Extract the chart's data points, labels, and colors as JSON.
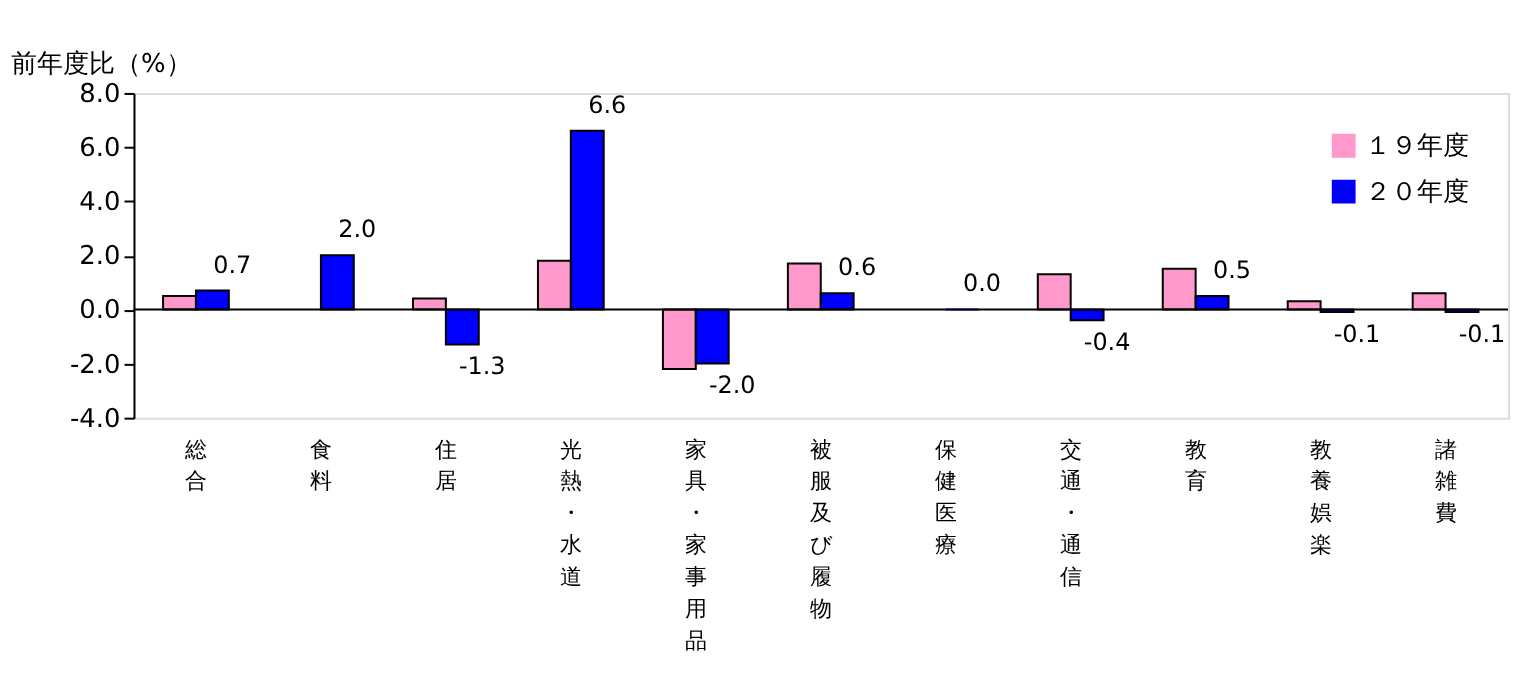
{
  "chart_data": {
    "type": "bar",
    "ylabel": "前年度比（%）",
    "categories": [
      "総合",
      "食料",
      "住居",
      "光熱・水道",
      "家具・家事用品",
      "被服及び履物",
      "保健医療",
      "交通・通信",
      "教育",
      "教養娯楽",
      "諸雑費"
    ],
    "series": [
      {
        "name": "１９年度",
        "color": "#ff99cc",
        "values": [
          0.5,
          null,
          0.4,
          1.8,
          -2.2,
          1.7,
          null,
          1.3,
          1.5,
          0.3,
          0.6
        ]
      },
      {
        "name": "２０年度",
        "color": "#0000ff",
        "values": [
          0.7,
          2.0,
          -1.3,
          6.6,
          -2.0,
          0.6,
          0.0,
          -0.4,
          0.5,
          -0.1,
          -0.1
        ],
        "value_labels": [
          "0.7",
          "2.0",
          "-1.3",
          "6.6",
          "-2.0",
          "0.6",
          "0.0",
          "-0.4",
          "0.5",
          "-0.1",
          "-0.1"
        ]
      }
    ],
    "ylim": [
      -4.0,
      8.0
    ],
    "yticks": [
      {
        "value": -4,
        "label": "-4.0"
      },
      {
        "value": -2,
        "label": "-2.0"
      },
      {
        "value": 0,
        "label": "0.0"
      },
      {
        "value": 2,
        "label": "2.0"
      },
      {
        "value": 4,
        "label": "4.0"
      },
      {
        "value": 6,
        "label": "6.0"
      },
      {
        "value": 8,
        "label": "8.0"
      }
    ],
    "ref_lines": [
      {
        "axis": "y",
        "value": 0,
        "color": "#000000"
      }
    ],
    "grid": false,
    "legend": "top right"
  }
}
